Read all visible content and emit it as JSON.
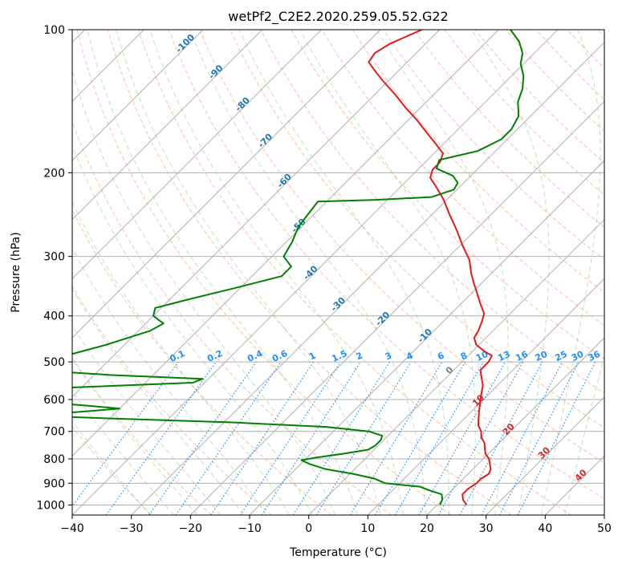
{
  "chart_data": {
    "type": "line",
    "title": "wetPf2_C2E2.2020.259.05.52.G22",
    "xlabel": "Temperature (°C)",
    "ylabel": "Pressure (hPa)",
    "xlim": [
      -40,
      50
    ],
    "ylim": [
      1050,
      100
    ],
    "y_scale": "log",
    "x_ticks": [
      "−40",
      "−30",
      "−20",
      "−10",
      "0",
      "10",
      "20",
      "30",
      "40",
      "50"
    ],
    "y_ticks": [
      "1000",
      "900",
      "800",
      "700",
      "600",
      "500",
      "400",
      "300",
      "200",
      "100"
    ],
    "grid": true,
    "series": [
      {
        "kind": "temperature",
        "color": "#e41a1c",
        "points": [
          [
            25.0,
            1000
          ],
          [
            23.5,
            975
          ],
          [
            22.5,
            950
          ],
          [
            22.5,
            925
          ],
          [
            23.0,
            900
          ],
          [
            23.0,
            880
          ],
          [
            23.5,
            860
          ],
          [
            23.0,
            840
          ],
          [
            22.0,
            820
          ],
          [
            21.0,
            800
          ],
          [
            19.5,
            780
          ],
          [
            18.5,
            760
          ],
          [
            17.5,
            740
          ],
          [
            16.0,
            720
          ],
          [
            15.0,
            700
          ],
          [
            13.5,
            680
          ],
          [
            12.5,
            660
          ],
          [
            11.5,
            640
          ],
          [
            10.5,
            620
          ],
          [
            9.5,
            600
          ],
          [
            8.5,
            580
          ],
          [
            7.5,
            560
          ],
          [
            6.0,
            540
          ],
          [
            4.5,
            520
          ],
          [
            4.5,
            500
          ],
          [
            4.0,
            485
          ],
          [
            2.0,
            475
          ],
          [
            -0.5,
            460
          ],
          [
            -2.0,
            445
          ],
          [
            -2.5,
            430
          ],
          [
            -3.5,
            410
          ],
          [
            -4.5,
            395
          ],
          [
            -7.0,
            375
          ],
          [
            -9.5,
            355
          ],
          [
            -11.5,
            340
          ],
          [
            -13.5,
            325
          ],
          [
            -16.0,
            305
          ],
          [
            -19.5,
            285
          ],
          [
            -23.0,
            265
          ],
          [
            -27.0,
            245
          ],
          [
            -30.5,
            228
          ],
          [
            -34.0,
            214
          ],
          [
            -36.5,
            205
          ],
          [
            -37.5,
            197
          ],
          [
            -37.5,
            190
          ],
          [
            -38.5,
            182
          ],
          [
            -42.0,
            172
          ],
          [
            -45.0,
            164
          ],
          [
            -48.5,
            155
          ],
          [
            -52.5,
            146
          ],
          [
            -56.5,
            137
          ],
          [
            -61.0,
            128
          ],
          [
            -64.5,
            121
          ],
          [
            -66.5,
            117
          ],
          [
            -67.0,
            112
          ],
          [
            -66.0,
            107
          ],
          [
            -63.0,
            100
          ]
        ]
      },
      {
        "kind": "dewpoint",
        "color": "#008000",
        "points": [
          [
            20.5,
            1000
          ],
          [
            20.0,
            975
          ],
          [
            19.0,
            950
          ],
          [
            16.0,
            930
          ],
          [
            14.0,
            915
          ],
          [
            7.5,
            900
          ],
          [
            5.0,
            880
          ],
          [
            0.5,
            860
          ],
          [
            -5.0,
            840
          ],
          [
            -8.5,
            820
          ],
          [
            -10.5,
            805
          ],
          [
            -8.5,
            795
          ],
          [
            -4.5,
            780
          ],
          [
            -1.0,
            765
          ],
          [
            -0.5,
            750
          ],
          [
            -0.5,
            730
          ],
          [
            -1.0,
            715
          ],
          [
            -4.0,
            700
          ],
          [
            -12.0,
            685
          ],
          [
            -29.0,
            670
          ],
          [
            -46.0,
            660
          ],
          [
            -62.0,
            650
          ],
          [
            -62.0,
            645
          ],
          [
            -55.0,
            635
          ],
          [
            -50.0,
            627
          ],
          [
            -56.0,
            618
          ],
          [
            -64.0,
            608
          ],
          [
            -70.0,
            598
          ],
          [
            -72.0,
            593
          ],
          [
            -68.0,
            590
          ],
          [
            -69.0,
            585
          ],
          [
            -75.0,
            582
          ],
          [
            -77.0,
            577
          ],
          [
            -60.0,
            565
          ],
          [
            -42.0,
            553
          ],
          [
            -41.0,
            543
          ],
          [
            -57.0,
            533
          ],
          [
            -68.0,
            523
          ],
          [
            -74.0,
            518
          ],
          [
            -75.0,
            513
          ],
          [
            -69.0,
            490
          ],
          [
            -63.0,
            460
          ],
          [
            -58.0,
            430
          ],
          [
            -57.0,
            415
          ],
          [
            -60.0,
            400
          ],
          [
            -61.0,
            385
          ],
          [
            -57.0,
            370
          ],
          [
            -51.0,
            350
          ],
          [
            -45.0,
            330
          ],
          [
            -45.0,
            315
          ],
          [
            -48.0,
            300
          ],
          [
            -49.0,
            280
          ],
          [
            -50.5,
            260
          ],
          [
            -51.0,
            245
          ],
          [
            -51.5,
            230
          ],
          [
            -42.0,
            228
          ],
          [
            -33.0,
            225
          ],
          [
            -30.5,
            217
          ],
          [
            -31.0,
            210
          ],
          [
            -33.0,
            203
          ],
          [
            -37.0,
            196
          ],
          [
            -38.0,
            188
          ],
          [
            -33.0,
            180
          ],
          [
            -31.0,
            170
          ],
          [
            -31.0,
            162
          ],
          [
            -32.0,
            152
          ],
          [
            -34.5,
            142
          ],
          [
            -36.0,
            133
          ],
          [
            -38.0,
            125
          ],
          [
            -40.5,
            118
          ],
          [
            -42.0,
            112
          ],
          [
            -44.5,
            106
          ],
          [
            -48.0,
            100
          ]
        ]
      }
    ],
    "isotherm_labels": [
      "-100",
      "-90",
      "-80",
      "-70",
      "-60",
      "-50",
      "-40",
      "-30",
      "-20",
      "-10",
      "0",
      "10",
      "20",
      "30",
      "40"
    ],
    "mixing_ratio_labels": [
      "0.1",
      "0.2",
      "0.4",
      "0.6",
      "1",
      "1.5",
      "2",
      "3",
      "4",
      "6",
      "8",
      "10",
      "13",
      "16",
      "20",
      "25",
      "30",
      "36"
    ],
    "mixing_ratio_values": [
      0.1,
      0.2,
      0.4,
      0.6,
      1,
      1.5,
      2,
      3,
      4,
      6,
      8,
      10,
      13,
      16,
      20,
      25,
      30,
      36
    ],
    "colors": {
      "isotherm_label_cold": "#1f77b4",
      "isotherm_label_warm": "#d62728",
      "isotherm_label_zero": "#808080",
      "mixing_ratio": "#1e90ff",
      "dry_adiabat": "#ff7f50",
      "moist_adiabat": "#2ca02c",
      "grid": "#b0b0b0"
    }
  }
}
